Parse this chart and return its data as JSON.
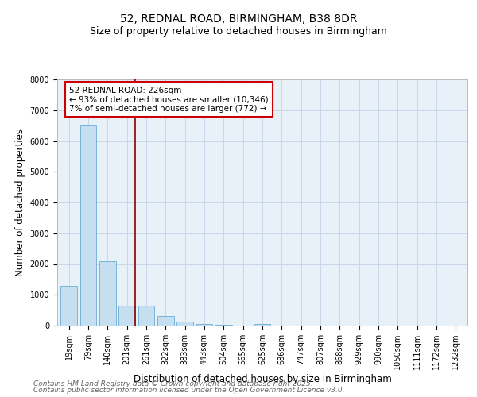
{
  "title_line1": "52, REDNAL ROAD, BIRMINGHAM, B38 8DR",
  "title_line2": "Size of property relative to detached houses in Birmingham",
  "xlabel": "Distribution of detached houses by size in Birmingham",
  "ylabel": "Number of detached properties",
  "categories": [
    "19sqm",
    "79sqm",
    "140sqm",
    "201sqm",
    "261sqm",
    "322sqm",
    "383sqm",
    "443sqm",
    "504sqm",
    "565sqm",
    "625sqm",
    "686sqm",
    "747sqm",
    "807sqm",
    "868sqm",
    "929sqm",
    "990sqm",
    "1050sqm",
    "1111sqm",
    "1172sqm",
    "1232sqm"
  ],
  "values": [
    1300,
    6500,
    2100,
    650,
    650,
    300,
    120,
    55,
    25,
    8,
    45,
    0,
    0,
    0,
    0,
    0,
    0,
    0,
    0,
    0,
    0
  ],
  "bar_color": "#c5dff0",
  "bar_edge_color": "#6aadd5",
  "vline_color": "#8b0000",
  "annotation_text_line1": "52 REDNAL ROAD: 226sqm",
  "annotation_text_line2": "← 93% of detached houses are smaller (10,346)",
  "annotation_text_line3": "7% of semi-detached houses are larger (772) →",
  "annotation_box_color": "#cc0000",
  "annotation_box_bg": "#ffffff",
  "ylim": [
    0,
    8000
  ],
  "yticks": [
    0,
    1000,
    2000,
    3000,
    4000,
    5000,
    6000,
    7000,
    8000
  ],
  "grid_color": "#c8d8e8",
  "bg_color": "#e8f0f8",
  "footer_line1": "Contains HM Land Registry data © Crown copyright and database right 2025.",
  "footer_line2": "Contains public sector information licensed under the Open Government Licence v3.0.",
  "title_fontsize": 10,
  "subtitle_fontsize": 9,
  "axis_label_fontsize": 8.5,
  "tick_fontsize": 7,
  "annotation_fontsize": 7.5,
  "footer_fontsize": 6.5
}
